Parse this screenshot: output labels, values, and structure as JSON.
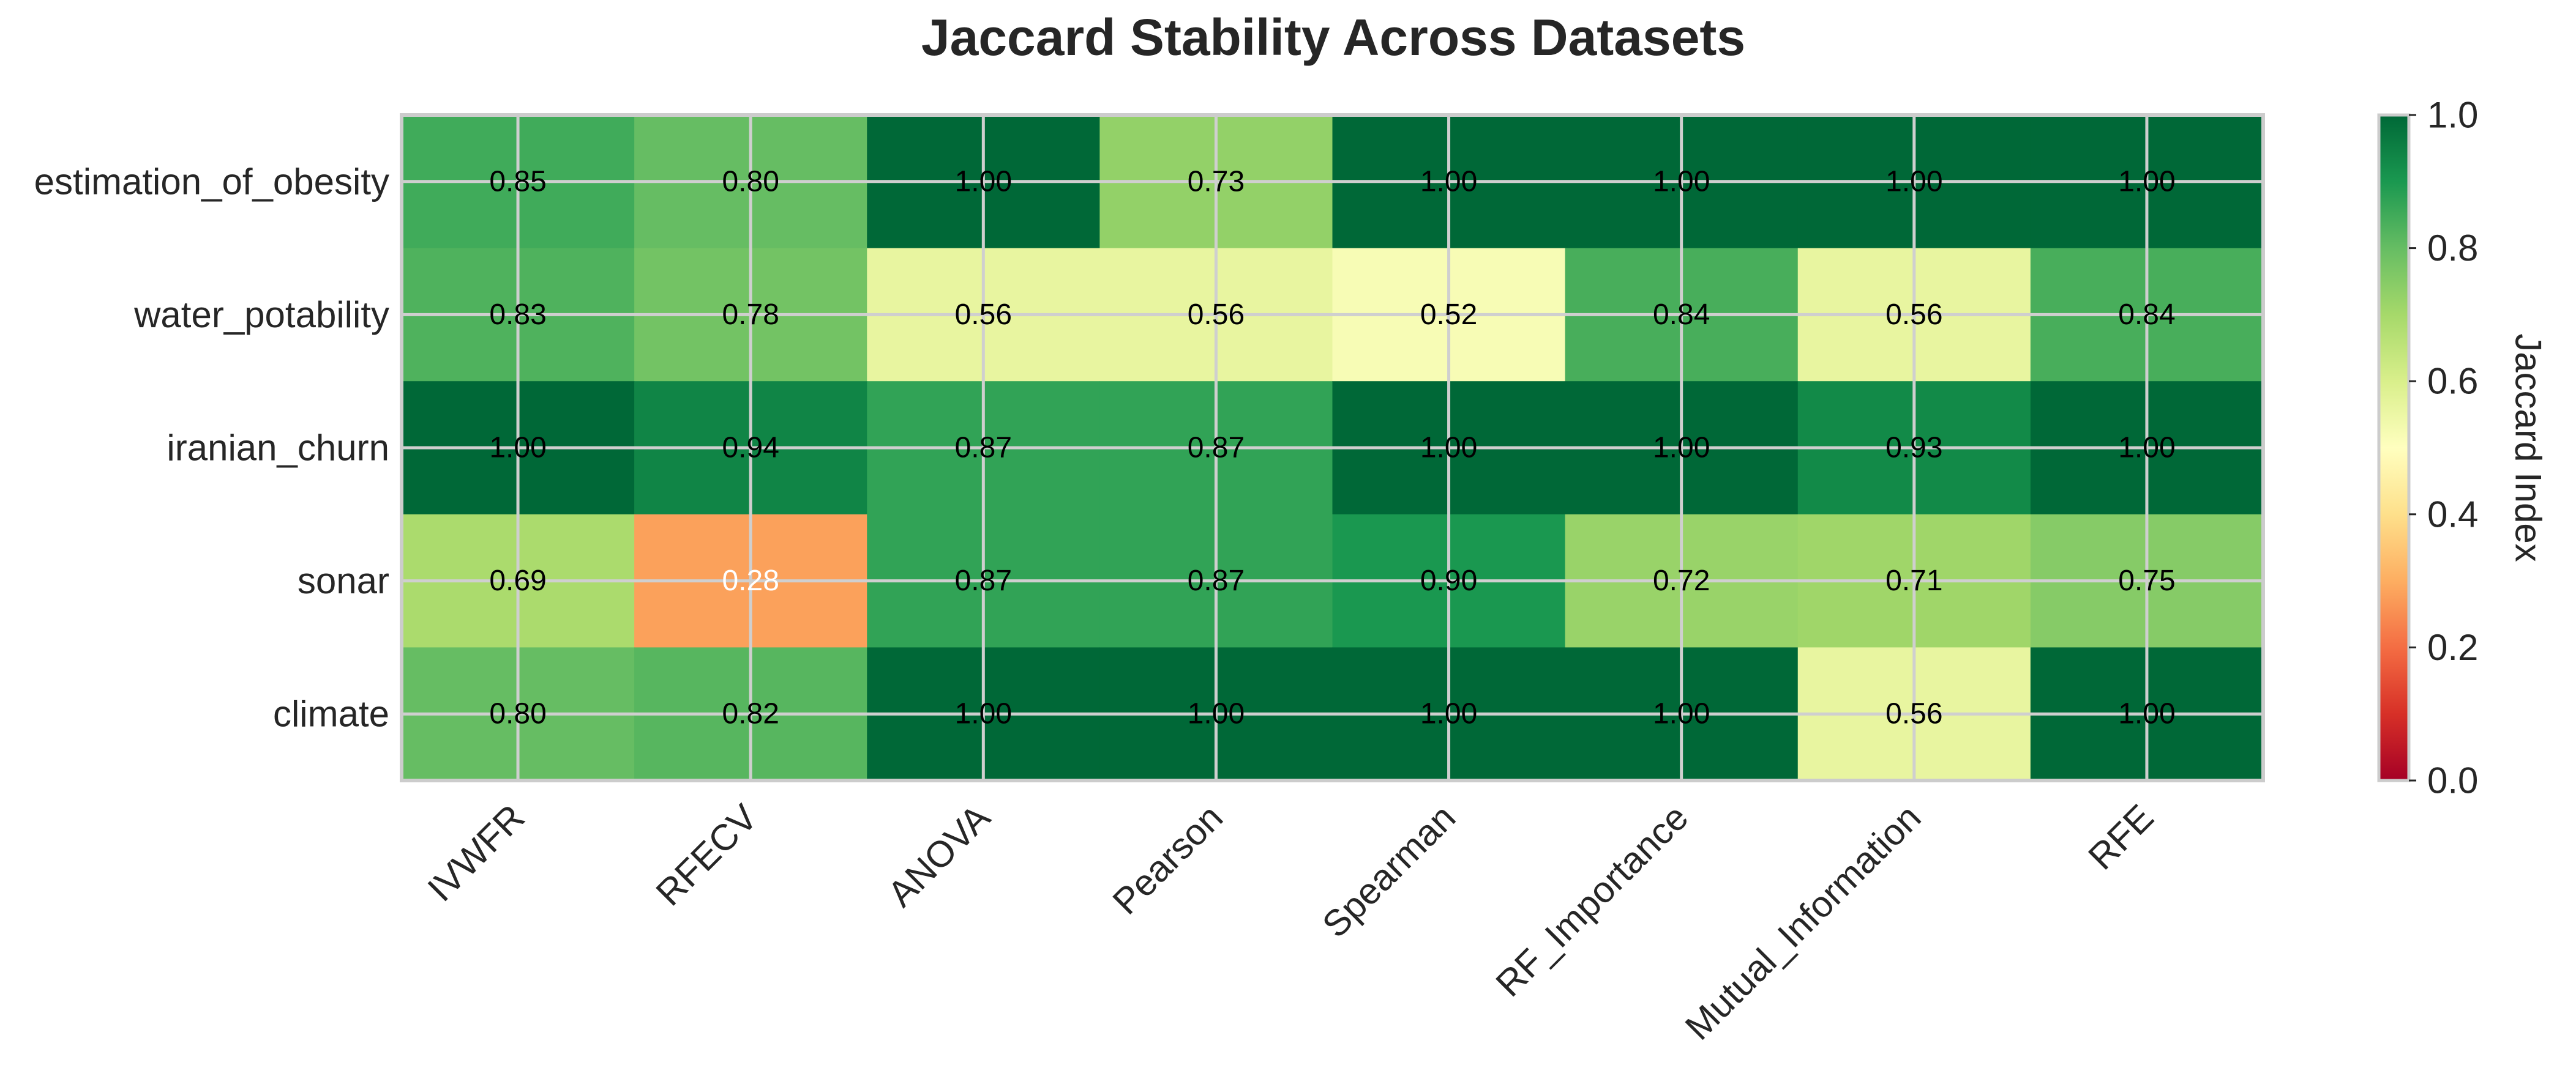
{
  "chart_data": {
    "type": "heatmap",
    "title": "Jaccard Stability Across Datasets",
    "rows": [
      "estimation_of_obesity",
      "water_potability",
      "iranian_churn",
      "sonar",
      "climate"
    ],
    "columns": [
      "IVWFR",
      "RFECV",
      "ANOVA",
      "Pearson",
      "Spearman",
      "RF_Importance",
      "Mutual_Information",
      "RFE"
    ],
    "values": [
      [
        0.85,
        0.8,
        1.0,
        0.73,
        1.0,
        1.0,
        1.0,
        1.0
      ],
      [
        0.83,
        0.78,
        0.56,
        0.56,
        0.52,
        0.84,
        0.56,
        0.84
      ],
      [
        1.0,
        0.94,
        0.87,
        0.87,
        1.0,
        1.0,
        0.93,
        1.0
      ],
      [
        0.69,
        0.28,
        0.87,
        0.87,
        0.9,
        0.72,
        0.71,
        0.75
      ],
      [
        0.8,
        0.82,
        1.0,
        1.0,
        1.0,
        1.0,
        0.56,
        1.0
      ]
    ],
    "value_labels": [
      [
        "0.85",
        "0.80",
        "1.00",
        "0.73",
        "1.00",
        "1.00",
        "1.00",
        "1.00"
      ],
      [
        "0.83",
        "0.78",
        "0.56",
        "0.56",
        "0.52",
        "0.84",
        "0.56",
        "0.84"
      ],
      [
        "1.00",
        "0.94",
        "0.87",
        "0.87",
        "1.00",
        "1.00",
        "0.93",
        "1.00"
      ],
      [
        "0.69",
        "0.28",
        "0.87",
        "0.87",
        "0.90",
        "0.72",
        "0.71",
        "0.75"
      ],
      [
        "0.80",
        "0.82",
        "1.00",
        "1.00",
        "1.00",
        "1.00",
        "0.56",
        "1.00"
      ]
    ],
    "colorbar": {
      "label": "Jaccard Index",
      "range": [
        0.0,
        1.0
      ],
      "ticks": [
        "0.0",
        "0.2",
        "0.4",
        "0.6",
        "0.8",
        "1.0"
      ],
      "colormap": "RdYlGn"
    },
    "grid": true
  }
}
